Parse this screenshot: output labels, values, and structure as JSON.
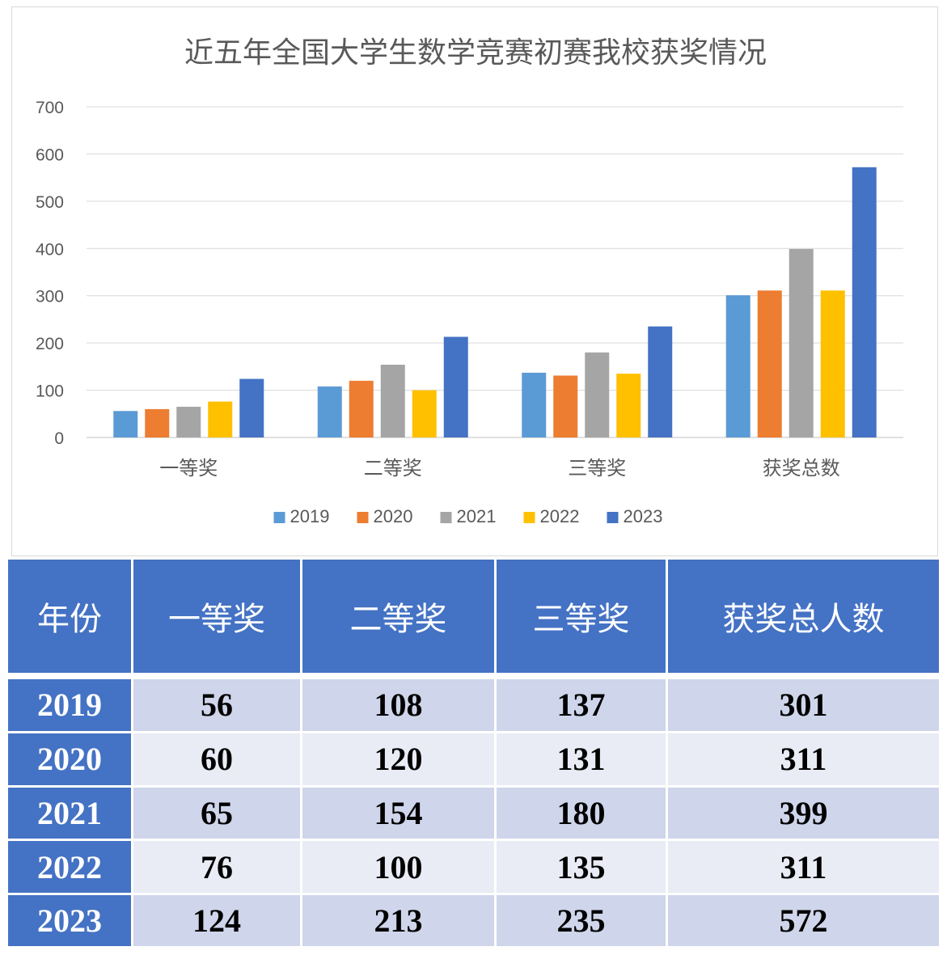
{
  "chart_data": {
    "type": "bar",
    "title": "近五年全国大学生数学竞赛初赛我校获奖情况",
    "categories": [
      "一等奖",
      "二等奖",
      "三等奖",
      "获奖总数"
    ],
    "series": [
      {
        "name": "2019",
        "color": "#5b9bd5",
        "values": [
          56,
          108,
          137,
          301
        ]
      },
      {
        "name": "2020",
        "color": "#ed7d31",
        "values": [
          60,
          120,
          131,
          311
        ]
      },
      {
        "name": "2021",
        "color": "#a5a5a5",
        "values": [
          65,
          154,
          180,
          399
        ]
      },
      {
        "name": "2022",
        "color": "#ffc000",
        "values": [
          76,
          100,
          135,
          311
        ]
      },
      {
        "name": "2023",
        "color": "#4472c4",
        "values": [
          124,
          213,
          235,
          572
        ]
      }
    ],
    "ylim": [
      0,
      700
    ],
    "yticks": [
      0,
      100,
      200,
      300,
      400,
      500,
      600,
      700
    ],
    "grid": true,
    "legend": "bottom"
  },
  "table": {
    "headers": [
      "年份",
      "一等奖",
      "二等奖",
      "三等奖",
      "获奖总人数"
    ],
    "rows": [
      [
        "2019",
        "56",
        "108",
        "137",
        "301"
      ],
      [
        "2020",
        "60",
        "120",
        "131",
        "311"
      ],
      [
        "2021",
        "65",
        "154",
        "180",
        "399"
      ],
      [
        "2022",
        "76",
        "100",
        "135",
        "311"
      ],
      [
        "2023",
        "124",
        "213",
        "235",
        "572"
      ]
    ]
  }
}
